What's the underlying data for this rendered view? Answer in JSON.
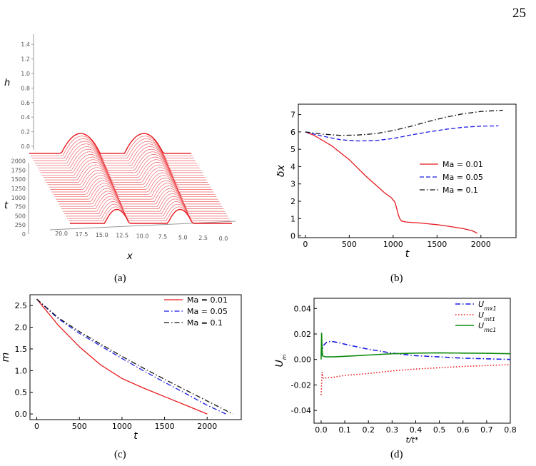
{
  "page_number": "25",
  "captions": [
    "(a)",
    "(b)",
    "(c)",
    "(d)"
  ],
  "colors": {
    "red": "#e8191e",
    "blue": "#1a1ae8",
    "black": "#111111",
    "green": "#0e8a0e"
  },
  "chart_data": [
    {
      "id": "a",
      "type": "line",
      "projection": "3d",
      "xlabel": "x",
      "ylabel": "t",
      "zlabel": "h",
      "x_ticks": [
        "20.0",
        "17.5",
        "15.0",
        "12.5",
        "10.0",
        "7.5",
        "5.0",
        "2.5",
        "0.0"
      ],
      "t_ticks": [
        "0",
        "250",
        "500",
        "750",
        "1000",
        "1250",
        "1500",
        "1750",
        "2000"
      ],
      "h_ticks": [
        "0.0",
        "0.2",
        "0.4",
        "0.6",
        "0.8",
        "1.0",
        "1.2",
        "1.4"
      ],
      "x_range": [
        0,
        20
      ],
      "t_range": [
        0,
        2000
      ],
      "h_range": [
        0,
        1.4
      ],
      "color": "#e8191e"
    },
    {
      "id": "b",
      "type": "line",
      "xlabel": "t",
      "ylabel": "δx",
      "xlim": [
        -80,
        2400
      ],
      "ylim": [
        -0.1,
        7.6
      ],
      "x_ticks": [
        0,
        500,
        1000,
        1500,
        2000
      ],
      "y_ticks": [
        0,
        1,
        2,
        3,
        4,
        5,
        6,
        7
      ],
      "legend": "right",
      "series": [
        {
          "name": "Ma = 0.01",
          "color": "#e8191e",
          "dash": "solid",
          "x": [
            0,
            100,
            200,
            300,
            400,
            500,
            600,
            700,
            800,
            900,
            980,
            1020,
            1040,
            1060,
            1080,
            1100,
            1150,
            1200,
            1300,
            1400,
            1500,
            1600,
            1700,
            1800,
            1900,
            1960
          ],
          "y": [
            6.0,
            5.8,
            5.5,
            5.2,
            4.8,
            4.4,
            3.9,
            3.4,
            2.95,
            2.5,
            2.2,
            1.95,
            1.6,
            1.2,
            0.95,
            0.85,
            0.8,
            0.78,
            0.75,
            0.7,
            0.65,
            0.58,
            0.5,
            0.42,
            0.3,
            0.15
          ]
        },
        {
          "name": "Ma = 0.05",
          "color": "#1a1ae8",
          "dash": "dashed",
          "x": [
            0,
            200,
            400,
            600,
            800,
            1000,
            1200,
            1400,
            1600,
            1800,
            2000,
            2200
          ],
          "y": [
            6.0,
            5.75,
            5.55,
            5.48,
            5.5,
            5.62,
            5.82,
            6.0,
            6.15,
            6.27,
            6.33,
            6.35
          ]
        },
        {
          "name": "Ma = 0.1",
          "color": "#111111",
          "dash": "dashdot",
          "x": [
            0,
            200,
            400,
            600,
            800,
            1000,
            1200,
            1400,
            1600,
            1800,
            2000,
            2250
          ],
          "y": [
            6.0,
            5.87,
            5.8,
            5.82,
            5.9,
            6.08,
            6.32,
            6.6,
            6.85,
            7.05,
            7.18,
            7.25
          ]
        }
      ]
    },
    {
      "id": "c",
      "type": "line",
      "xlabel": "t",
      "ylabel": "m",
      "xlim": [
        -80,
        2400
      ],
      "ylim": [
        -0.13,
        2.75
      ],
      "x_ticks": [
        0,
        500,
        1000,
        1500,
        2000
      ],
      "y_ticks": [
        0.0,
        0.5,
        1.0,
        1.5,
        2.0,
        2.5
      ],
      "legend": "top-right",
      "series": [
        {
          "name": "Ma = 0.01",
          "color": "#e8191e",
          "dash": "solid",
          "x": [
            0,
            250,
            500,
            750,
            1000,
            1250,
            1500,
            1750,
            2000
          ],
          "y": [
            2.65,
            2.05,
            1.55,
            1.13,
            0.82,
            0.6,
            0.4,
            0.2,
            0.0
          ]
        },
        {
          "name": "Ma = 0.05",
          "color": "#1a1ae8",
          "dash": "dashdot",
          "x": [
            0,
            250,
            500,
            750,
            1000,
            1250,
            1500,
            1750,
            2000,
            2220
          ],
          "y": [
            2.65,
            2.2,
            1.86,
            1.57,
            1.28,
            1.0,
            0.73,
            0.47,
            0.2,
            0.0
          ]
        },
        {
          "name": "Ma = 0.1",
          "color": "#111111",
          "dash": "dashdot",
          "x": [
            0,
            250,
            500,
            750,
            1000,
            1250,
            1500,
            1750,
            2000,
            2300
          ],
          "y": [
            2.65,
            2.22,
            1.9,
            1.61,
            1.33,
            1.06,
            0.8,
            0.55,
            0.3,
            0.0
          ]
        }
      ]
    },
    {
      "id": "d",
      "type": "line",
      "xlabel": "t/t*",
      "ylabel": "U_m",
      "xlim": [
        -0.03,
        0.8
      ],
      "ylim": [
        -0.05,
        0.048
      ],
      "x_ticks": [
        0.0,
        0.1,
        0.2,
        0.3,
        0.4,
        0.5,
        0.6,
        0.7,
        0.8
      ],
      "y_ticks": [
        -0.04,
        -0.02,
        0.0,
        0.02,
        0.04
      ],
      "legend": "top-right",
      "series": [
        {
          "name": "U_mx1",
          "label": "U",
          "sub": "mx1",
          "color": "#1a1ae8",
          "dash": "dashdot",
          "x": [
            0,
            0.005,
            0.01,
            0.02,
            0.03,
            0.05,
            0.08,
            0.1,
            0.15,
            0.2,
            0.3,
            0.4,
            0.5,
            0.6,
            0.7,
            0.8
          ],
          "y": [
            0.003,
            0.008,
            0.011,
            0.013,
            0.014,
            0.014,
            0.013,
            0.012,
            0.01,
            0.008,
            0.005,
            0.003,
            0.002,
            0.001,
            0.0005,
            0.0
          ]
        },
        {
          "name": "U_mt1",
          "label": "U",
          "sub": "mt1",
          "color": "#e8191e",
          "dash": "dotted",
          "x": [
            0,
            0.002,
            0.004,
            0.006,
            0.01,
            0.02,
            0.05,
            0.1,
            0.2,
            0.3,
            0.4,
            0.5,
            0.6,
            0.7,
            0.8
          ],
          "y": [
            -0.028,
            -0.02,
            -0.01,
            -0.014,
            -0.015,
            -0.0145,
            -0.014,
            -0.0125,
            -0.011,
            -0.009,
            -0.0075,
            -0.0065,
            -0.0055,
            -0.0048,
            -0.004
          ]
        },
        {
          "name": "U_mc1",
          "label": "U",
          "sub": "mc1",
          "color": "#0e8a0e",
          "dash": "solid",
          "x": [
            0,
            0.002,
            0.004,
            0.006,
            0.01,
            0.02,
            0.05,
            0.1,
            0.2,
            0.3,
            0.4,
            0.5,
            0.6,
            0.7,
            0.8
          ],
          "y": [
            0.0,
            0.021,
            0.008,
            0.003,
            0.0025,
            0.002,
            0.002,
            0.0025,
            0.0035,
            0.0045,
            0.005,
            0.0052,
            0.005,
            0.0048,
            0.0045
          ]
        }
      ]
    }
  ]
}
